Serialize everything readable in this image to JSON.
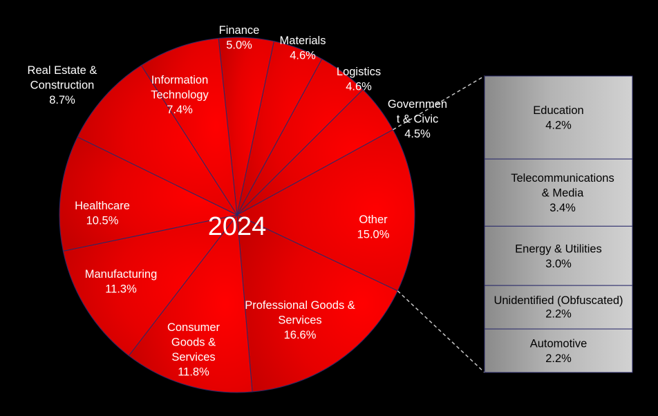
{
  "chart_data": {
    "type": "pie",
    "title": "2024",
    "slices": [
      {
        "label": "Finance",
        "label_lines": [
          "Finance",
          "5.0%"
        ],
        "value": 5.0
      },
      {
        "label": "Materials",
        "label_lines": [
          "Materials",
          "4.6%"
        ],
        "value": 4.6
      },
      {
        "label": "Logistics",
        "label_lines": [
          "Logistics",
          "4.6%"
        ],
        "value": 4.6
      },
      {
        "label": "Government & Civic",
        "label_lines": [
          "Governmen",
          "t & Civic",
          "4.5%"
        ],
        "value": 4.5
      },
      {
        "label": "Other",
        "label_lines": [
          "Other",
          "15.0%"
        ],
        "value": 15.0
      },
      {
        "label": "Professional Goods & Services",
        "label_lines": [
          "Professional Goods &",
          "Services",
          "16.6%"
        ],
        "value": 16.6
      },
      {
        "label": "Consumer Goods & Services",
        "label_lines": [
          "Consumer",
          "Goods &",
          "Services",
          "11.8%"
        ],
        "value": 11.8
      },
      {
        "label": "Manufacturing",
        "label_lines": [
          "Manufacturing",
          "11.3%"
        ],
        "value": 11.3
      },
      {
        "label": "Healthcare",
        "label_lines": [
          "Healthcare",
          "10.5%"
        ],
        "value": 10.5
      },
      {
        "label": "Real Estate & Construction",
        "label_lines": [
          "Real Estate &",
          "Construction",
          "8.7%"
        ],
        "value": 8.7
      },
      {
        "label": "Information Technology",
        "label_lines": [
          "Information",
          "Technology",
          "7.4%"
        ],
        "value": 7.4
      }
    ],
    "breakdown": {
      "of": "Other",
      "items": [
        {
          "label": "Education",
          "label_lines": [
            "Education",
            "4.2%"
          ],
          "value": 4.2
        },
        {
          "label": "Telecommunications & Media",
          "label_lines": [
            "Telecommunications",
            "& Media",
            "3.4%"
          ],
          "value": 3.4
        },
        {
          "label": "Energy & Utilities",
          "label_lines": [
            "Energy & Utilities",
            "3.0%"
          ],
          "value": 3.0
        },
        {
          "label": "Unidentified (Obfuscated)",
          "label_lines": [
            "Unidentified (Obfuscated)",
            "2.2%"
          ],
          "value": 2.2
        },
        {
          "label": "Automotive",
          "label_lines": [
            "Automotive",
            "2.2%"
          ],
          "value": 2.2
        }
      ]
    },
    "colors": {
      "background": "#000000",
      "slice": "#e00000",
      "slice_border": "#2a2a6a",
      "bar_border": "#2a2a6a",
      "connector": "#c8c8c8",
      "label_text": "#ffffff",
      "bar_text": "#000000"
    }
  }
}
